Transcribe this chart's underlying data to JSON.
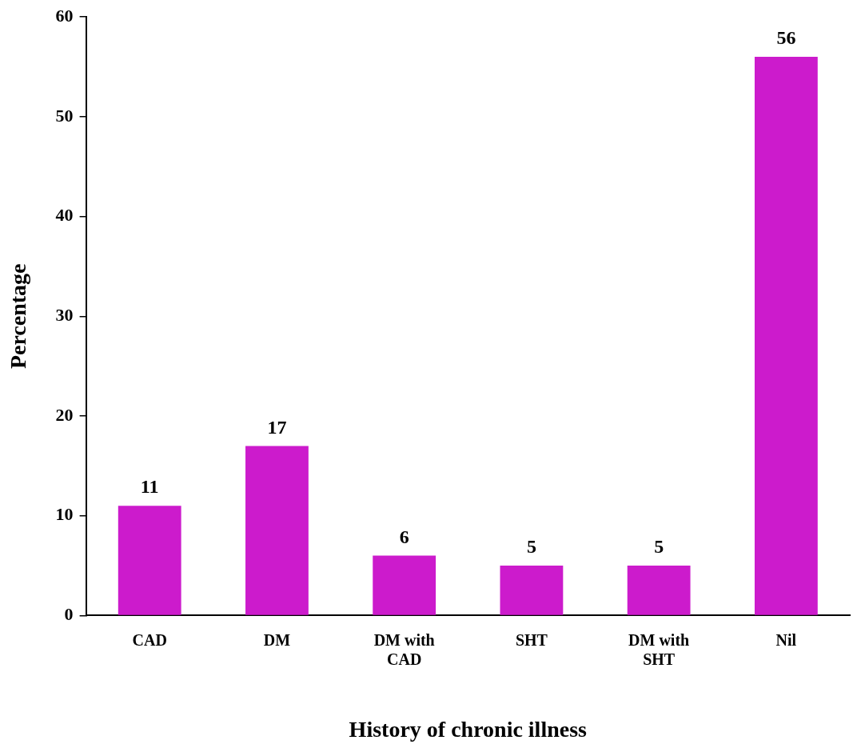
{
  "chart_data": {
    "type": "bar",
    "xlabel": "History of chronic illness",
    "ylabel": "Percentage",
    "categories": [
      "CAD",
      "DM",
      "DM with CAD",
      "SHT",
      "DM with SHT",
      "Nil"
    ],
    "values": [
      11,
      17,
      6,
      5,
      5,
      56
    ],
    "color": "#cc1bcc",
    "ylim": [
      0,
      60
    ],
    "yticks": [
      0,
      10,
      20,
      30,
      40,
      50,
      60
    ],
    "grid": false,
    "legend": false,
    "data_labels": true
  }
}
